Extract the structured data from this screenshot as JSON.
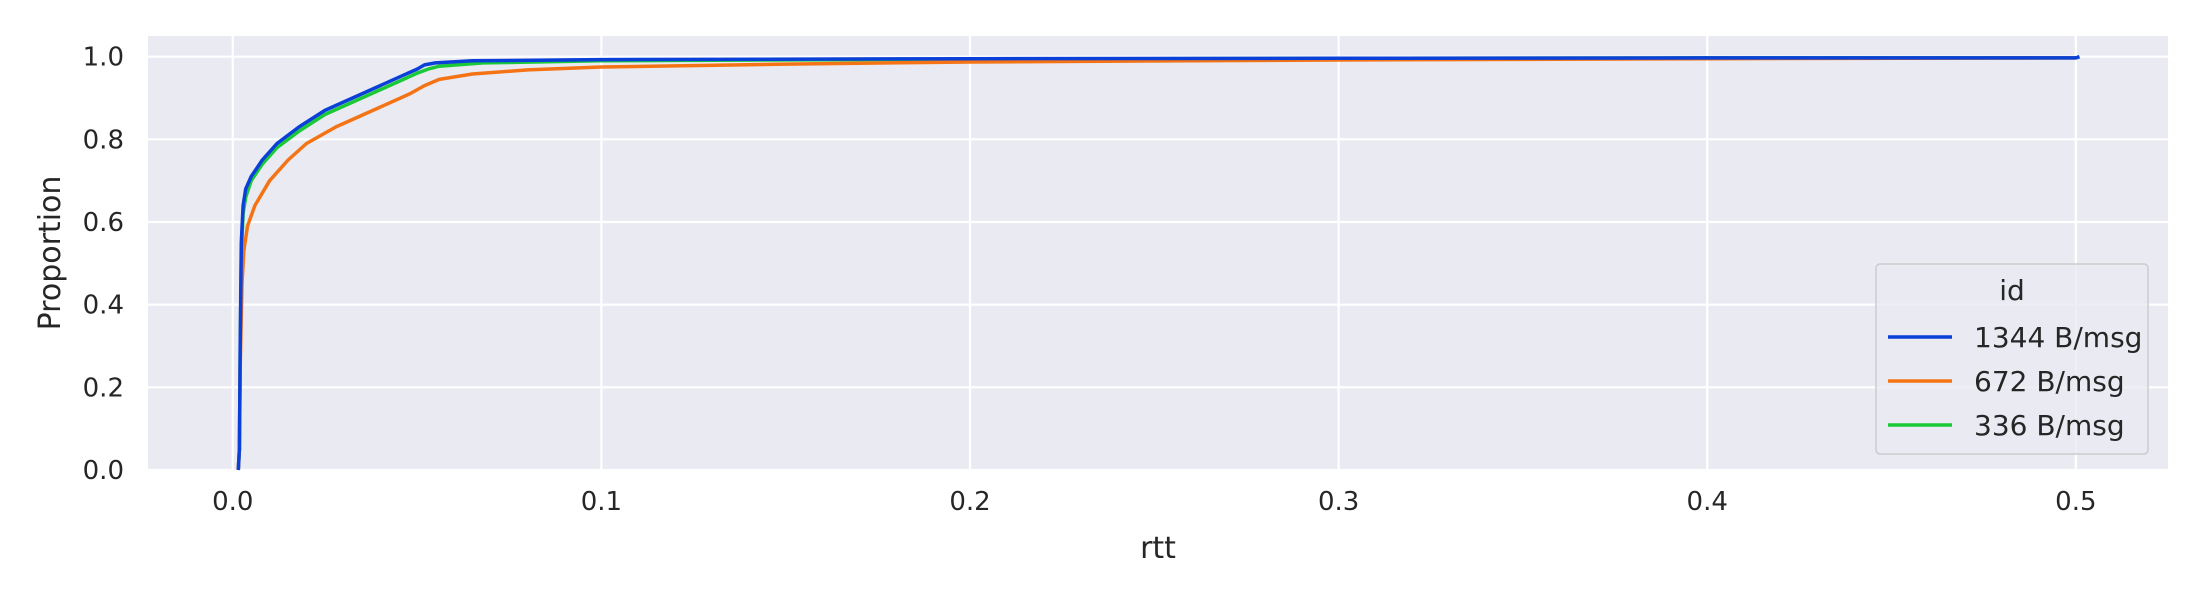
{
  "chart_data": {
    "type": "line",
    "title": "",
    "xlabel": "rtt",
    "ylabel": "Proportion",
    "xlim": [
      -0.023,
      0.525
    ],
    "ylim": [
      0.0,
      1.05
    ],
    "xticks": [
      0.0,
      0.1,
      0.2,
      0.3,
      0.4,
      0.5
    ],
    "xtick_labels": [
      "0.0",
      "0.1",
      "0.2",
      "0.3",
      "0.4",
      "0.5"
    ],
    "yticks": [
      0.0,
      0.2,
      0.4,
      0.6,
      0.8,
      1.0
    ],
    "ytick_labels": [
      "0.0",
      "0.2",
      "0.4",
      "0.6",
      "0.8",
      "1.0"
    ],
    "grid": true,
    "legend": {
      "title": "id",
      "position": "lower-right"
    },
    "series": [
      {
        "name": "1344 B/msg",
        "color": "#0a3fd8",
        "x": [
          0.0015,
          0.0018,
          0.002,
          0.0023,
          0.0028,
          0.0035,
          0.005,
          0.008,
          0.012,
          0.018,
          0.025,
          0.035,
          0.045,
          0.05,
          0.052,
          0.055,
          0.065,
          0.1,
          0.2,
          0.3,
          0.4,
          0.5,
          0.501
        ],
        "y": [
          0.0,
          0.05,
          0.3,
          0.55,
          0.64,
          0.68,
          0.71,
          0.75,
          0.79,
          0.83,
          0.87,
          0.91,
          0.95,
          0.97,
          0.98,
          0.985,
          0.99,
          0.993,
          0.995,
          0.996,
          0.997,
          0.997,
          1.0
        ]
      },
      {
        "name": "672 B/msg",
        "color": "#f47415",
        "x": [
          0.0015,
          0.0018,
          0.002,
          0.0025,
          0.003,
          0.004,
          0.006,
          0.01,
          0.015,
          0.02,
          0.028,
          0.038,
          0.048,
          0.052,
          0.056,
          0.065,
          0.08,
          0.1,
          0.15,
          0.2,
          0.3,
          0.4,
          0.5
        ],
        "y": [
          0.0,
          0.05,
          0.25,
          0.45,
          0.53,
          0.59,
          0.64,
          0.7,
          0.75,
          0.79,
          0.83,
          0.87,
          0.91,
          0.93,
          0.945,
          0.958,
          0.968,
          0.975,
          0.982,
          0.987,
          0.992,
          0.995,
          0.997
        ]
      },
      {
        "name": "336 B/msg",
        "color": "#1ac938",
        "x": [
          0.0015,
          0.0018,
          0.002,
          0.0023,
          0.0028,
          0.0035,
          0.005,
          0.008,
          0.012,
          0.018,
          0.025,
          0.035,
          0.045,
          0.05,
          0.053,
          0.056,
          0.068,
          0.1,
          0.2,
          0.3,
          0.4,
          0.5
        ],
        "y": [
          0.0,
          0.05,
          0.28,
          0.52,
          0.62,
          0.66,
          0.7,
          0.74,
          0.78,
          0.82,
          0.86,
          0.9,
          0.94,
          0.96,
          0.97,
          0.977,
          0.985,
          0.99,
          0.994,
          0.996,
          0.997,
          0.997
        ]
      }
    ]
  }
}
